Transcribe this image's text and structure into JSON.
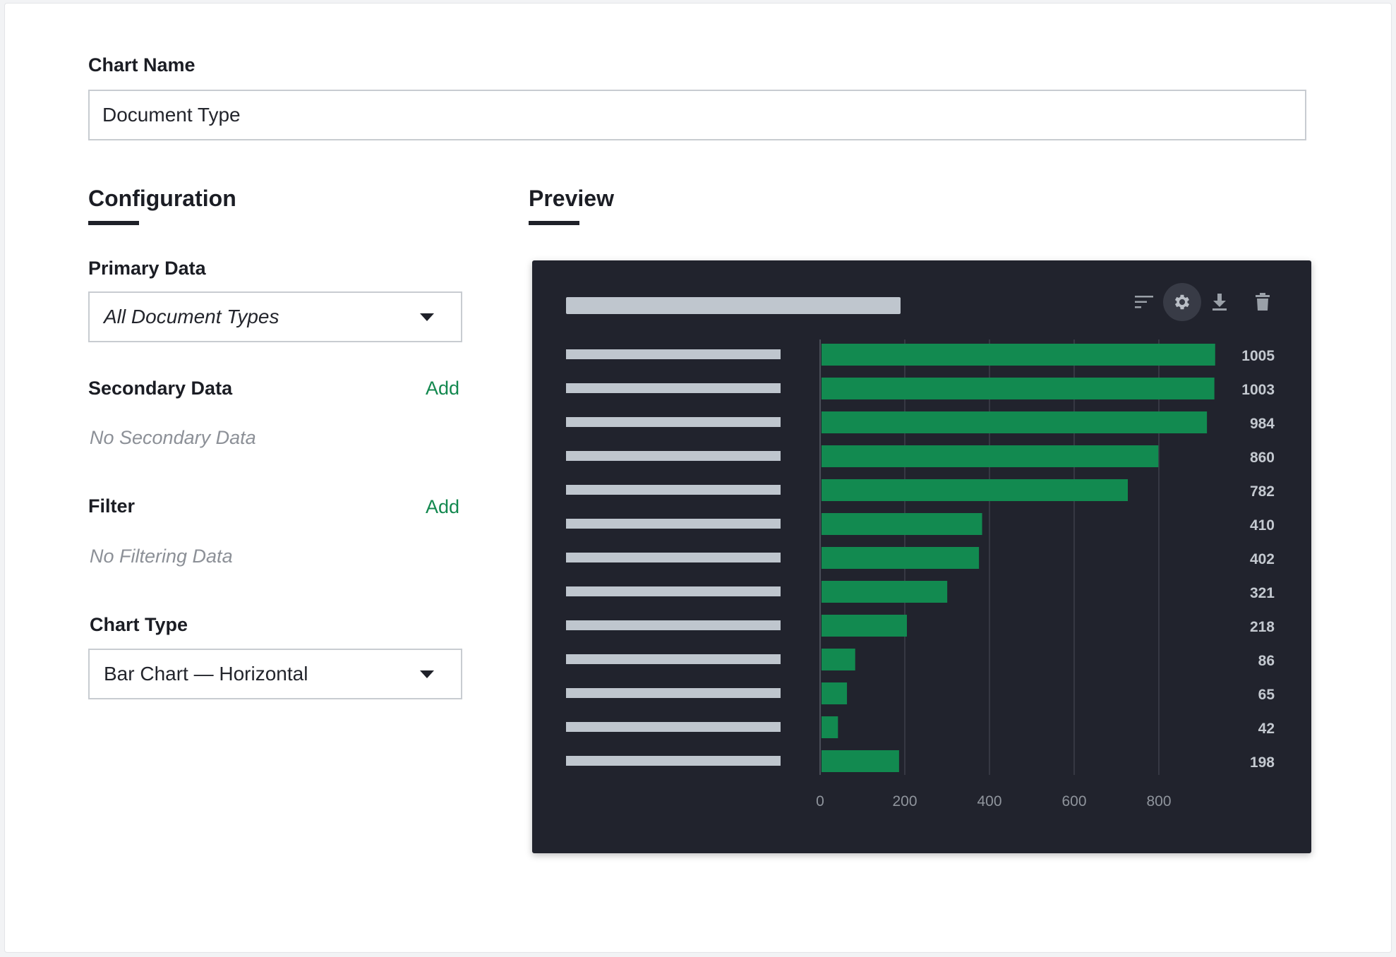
{
  "form": {
    "chart_name_label": "Chart Name",
    "chart_name_value": "Document Type"
  },
  "configuration": {
    "title": "Configuration",
    "primary_data_label": "Primary Data",
    "primary_data_value": "All Document Types",
    "secondary_data_label": "Secondary Data",
    "secondary_add": "Add",
    "secondary_empty": "No Secondary Data",
    "filter_label": "Filter",
    "filter_add": "Add",
    "filter_empty": "No Filtering Data",
    "chart_type_label": "Chart Type",
    "chart_type_value": "Bar Chart — Horizontal"
  },
  "preview": {
    "title": "Preview",
    "toolbar": [
      {
        "name": "sort-icon",
        "active": false
      },
      {
        "name": "gear-icon",
        "active": true
      },
      {
        "name": "download-icon",
        "active": false
      },
      {
        "name": "trash-icon",
        "active": false
      }
    ]
  },
  "colors": {
    "bar": "#128a50",
    "panel": "#21232d",
    "accent_link": "#13884f",
    "placeholder": "#bfc6ce"
  },
  "chart_data": {
    "type": "bar",
    "orientation": "horizontal",
    "values": [
      1005,
      1003,
      984,
      860,
      782,
      410,
      402,
      321,
      218,
      86,
      65,
      42,
      198
    ],
    "xticks": [
      0,
      200,
      400,
      600,
      800
    ],
    "xlim": [
      0,
      1000
    ],
    "grid": true
  }
}
